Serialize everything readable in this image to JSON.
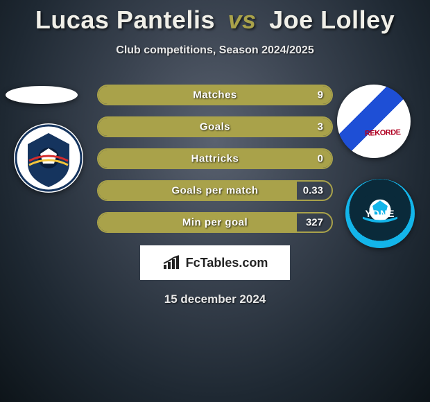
{
  "title": {
    "player1": "Lucas Pantelis",
    "vs": "vs",
    "player2": "Joe Lolley"
  },
  "subtitle": "Club competitions, Season 2024/2025",
  "stats": [
    {
      "label": "Matches",
      "value": "9",
      "fill_pct": 100
    },
    {
      "label": "Goals",
      "value": "3",
      "fill_pct": 100
    },
    {
      "label": "Hattricks",
      "value": "0",
      "fill_pct": 100
    },
    {
      "label": "Goals per match",
      "value": "0.33",
      "fill_pct": 85
    },
    {
      "label": "Min per goal",
      "value": "327",
      "fill_pct": 85
    }
  ],
  "colors": {
    "bar_border": "#a9a24a",
    "bar_fill": "#a9a24a",
    "text": "#ffffff",
    "bg_inner": "#5a6270",
    "bg_outer": "#0d1419"
  },
  "footer": {
    "logo_text": "FcTables.com",
    "date": "15 december 2024"
  },
  "avatars": {
    "left_player_alt": "Lucas Pantelis photo",
    "left_club_alt": "Adelaide United F.C. crest",
    "right_player_alt": "Joe Lolley photo",
    "right_player_shirt_text": "REKORDE",
    "right_club_alt": "Sydney FC crest",
    "right_club_text": "YDNE"
  }
}
